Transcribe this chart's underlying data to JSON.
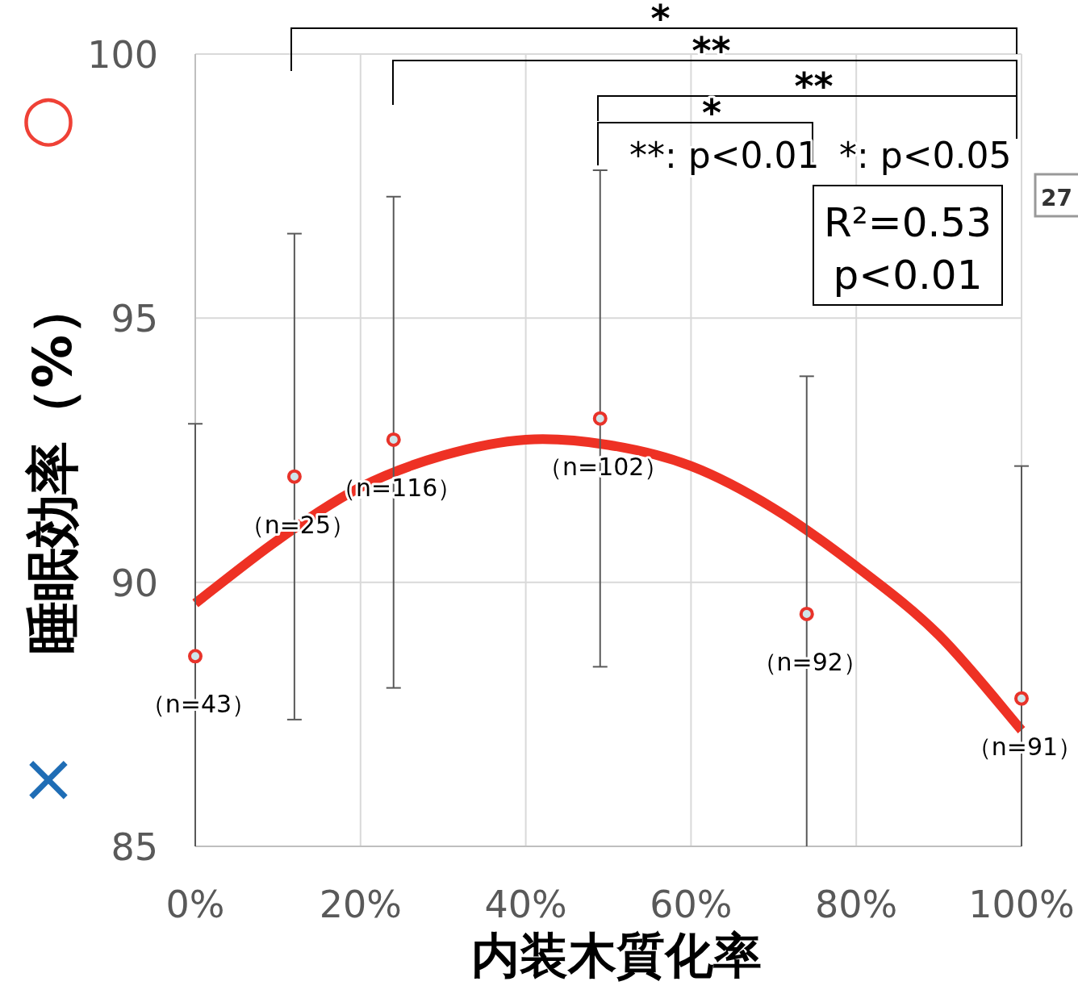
{
  "chart_data": {
    "type": "scatter",
    "xlabel": "内装木質化率",
    "ylabel": "睡眠効率（%）",
    "xlim": [
      0,
      100
    ],
    "xticks": [
      {
        "value": 0,
        "label": "0%"
      },
      {
        "value": 20,
        "label": "20%"
      },
      {
        "value": 40,
        "label": "40%"
      },
      {
        "value": 60,
        "label": "60%"
      },
      {
        "value": 80,
        "label": "80%"
      },
      {
        "value": 100,
        "label": "100%"
      }
    ],
    "ylim": [
      85,
      100
    ],
    "yticks": [
      85,
      90,
      95,
      100
    ],
    "grid": true,
    "marker": "circle",
    "series": [
      {
        "type": "line",
        "marker": "none",
        "color": "#ee3124",
        "x": [
          0,
          10,
          20,
          30,
          40,
          50,
          60,
          70,
          80,
          90,
          100
        ],
        "values": [
          89.6,
          90.8,
          91.8,
          92.4,
          92.7,
          92.6,
          92.2,
          91.4,
          90.3,
          89.0,
          87.2
        ]
      },
      {
        "color": "#e8332a",
        "x": [
          0,
          12,
          24,
          49,
          74,
          100
        ],
        "values": [
          88.6,
          92.0,
          92.7,
          93.1,
          89.4,
          87.8
        ],
        "errors": [
          [
            85,
            93.0
          ],
          [
            87.4,
            96.6
          ],
          [
            88.0,
            97.3
          ],
          [
            88.4,
            97.8
          ],
          [
            85,
            93.9
          ],
          [
            85,
            92.2
          ]
        ]
      }
    ],
    "annotations": [
      {
        "text": "（n=43）",
        "x": 0,
        "y": 88.6
      },
      {
        "text": "（n=25）",
        "x": 12,
        "y": 92.0
      },
      {
        "text": "（n=116）",
        "x": 24,
        "y": 92.7
      },
      {
        "text": "（n=102）",
        "x": 49,
        "y": 93.1
      },
      {
        "text": "（n=92）",
        "x": 74,
        "y": 89.4
      },
      {
        "text": "（n=91）",
        "x": 100,
        "y": 87.8
      },
      "*",
      "**",
      "**",
      "*",
      "**: p<0.01",
      "*: p<0.05",
      "R²=0.53",
      "p<0.01",
      "○",
      "×",
      "27"
    ]
  }
}
